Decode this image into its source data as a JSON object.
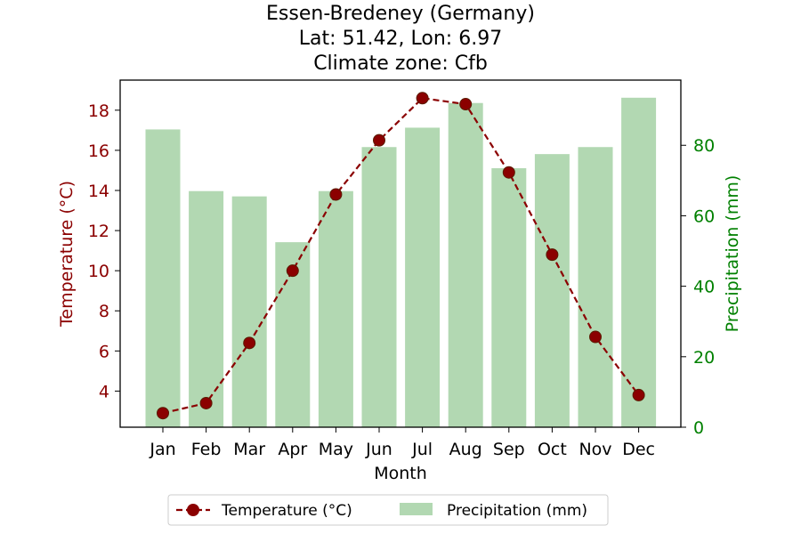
{
  "chart_data": {
    "type": "bar+line",
    "title": [
      "Essen-Bredeney (Germany)",
      "Lat: 51.42, Lon: 6.97",
      "Climate zone: Cfb"
    ],
    "xlabel": "Month",
    "categories": [
      "Jan",
      "Feb",
      "Mar",
      "Apr",
      "May",
      "Jun",
      "Jul",
      "Aug",
      "Sep",
      "Oct",
      "Nov",
      "Dec"
    ],
    "y_left": {
      "label": "Temperature (°C)",
      "ticks": [
        4,
        6,
        8,
        10,
        12,
        14,
        16,
        18
      ],
      "range": [
        2.2,
        19.5
      ],
      "color": "#8b0000"
    },
    "y_right": {
      "label": "Precipitation (mm)",
      "ticks": [
        0,
        20,
        40,
        60,
        80
      ],
      "range": [
        0,
        98.5
      ],
      "color": "#008000"
    },
    "series": [
      {
        "name": "Temperature (°C)",
        "type": "line",
        "axis": "left",
        "style": "dashed with circle markers",
        "color": "#8b0000",
        "values": [
          2.9,
          3.4,
          6.4,
          10.0,
          13.8,
          16.5,
          18.6,
          18.3,
          14.9,
          10.8,
          6.7,
          3.8
        ]
      },
      {
        "name": "Precipitation (mm)",
        "type": "bar",
        "axis": "right",
        "color": "#b2d8b2",
        "values": [
          84.5,
          67.0,
          65.5,
          52.5,
          67.0,
          79.5,
          85.0,
          92.0,
          73.5,
          77.5,
          79.5,
          93.5
        ]
      }
    ],
    "legend_position": "bottom-center"
  }
}
